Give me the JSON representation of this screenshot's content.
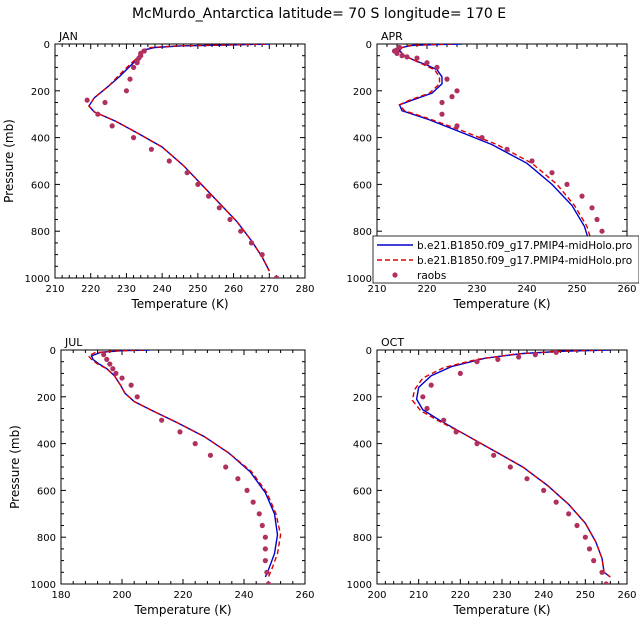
{
  "title": "McMurdo_Antarctica  latitude= 70 S longitude= 170 E",
  "legend": [
    {
      "label": "b.e21.B1850.f09_g17.PMIP4-midHolo.pro",
      "color": "#0000cc",
      "style": "solid"
    },
    {
      "label": "b.e21.B1850.f09_g17.PMIP4-midHolo.pro",
      "color": "#dd0000",
      "style": "dashed"
    },
    {
      "label": "raobs",
      "color": "#b03060",
      "style": "marker"
    }
  ],
  "colors": {
    "model_a": "#0000cc",
    "model_b": "#dd0000",
    "obs": "#b03060"
  },
  "chart_data": [
    {
      "type": "line",
      "panel": "JAN",
      "xlabel": "Temperature (K)",
      "ylabel": "Pressure (mb)",
      "xlim": [
        210,
        280
      ],
      "ylim": [
        1000,
        0
      ],
      "xticks": [
        210,
        220,
        230,
        240,
        250,
        260,
        270,
        280
      ],
      "yticks": [
        0,
        200,
        400,
        600,
        800,
        1000
      ],
      "series": [
        {
          "values": [
            [
              270,
              0
            ],
            [
              260,
              4
            ],
            [
              245,
              8
            ],
            [
              238,
              15
            ],
            [
              235,
              25
            ],
            [
              234,
              40
            ],
            [
              233.5,
              60
            ],
            [
              232,
              80
            ],
            [
              230,
              110
            ],
            [
              228,
              140
            ],
            [
              225,
              180
            ],
            [
              221,
              230
            ],
            [
              219.5,
              265
            ],
            [
              221,
              290
            ],
            [
              227,
              330
            ],
            [
              233,
              380
            ],
            [
              240,
              440
            ],
            [
              246,
              520
            ],
            [
              251,
              600
            ],
            [
              256,
              680
            ],
            [
              261,
              760
            ],
            [
              265,
              840
            ],
            [
              268,
              910
            ],
            [
              270,
              970
            ]
          ]
        },
        {
          "values": [
            [
              269,
              0
            ],
            [
              259,
              4
            ],
            [
              244,
              8
            ],
            [
              237,
              15
            ],
            [
              234.5,
              25
            ],
            [
              234,
              40
            ],
            [
              233,
              60
            ],
            [
              231.5,
              80
            ],
            [
              229.5,
              110
            ],
            [
              227.5,
              140
            ],
            [
              225,
              180
            ],
            [
              221,
              230
            ],
            [
              219.5,
              265
            ],
            [
              221,
              290
            ],
            [
              227,
              330
            ],
            [
              233,
              380
            ],
            [
              240,
              440
            ],
            [
              246,
              520
            ],
            [
              251,
              600
            ],
            [
              256,
              680
            ],
            [
              261,
              760
            ],
            [
              265,
              840
            ],
            [
              268,
              910
            ],
            [
              270,
              970
            ]
          ]
        }
      ],
      "obs": [
        [
          235,
          30
        ],
        [
          234,
          40
        ],
        [
          234,
          50
        ],
        [
          233.5,
          60
        ],
        [
          233,
          70
        ],
        [
          233,
          80
        ],
        [
          232,
          100
        ],
        [
          231,
          150
        ],
        [
          230,
          200
        ],
        [
          224,
          250
        ],
        [
          219,
          240
        ],
        [
          222,
          300
        ],
        [
          226,
          350
        ],
        [
          232,
          400
        ],
        [
          237,
          450
        ],
        [
          242,
          500
        ],
        [
          247,
          550
        ],
        [
          250,
          600
        ],
        [
          253,
          650
        ],
        [
          256,
          700
        ],
        [
          259,
          750
        ],
        [
          262,
          800
        ],
        [
          265,
          850
        ],
        [
          268,
          900
        ],
        [
          272,
          1000
        ]
      ]
    },
    {
      "type": "line",
      "panel": "APR",
      "xlabel": "Temperature (K)",
      "ylabel": "",
      "xlim": [
        210,
        260
      ],
      "ylim": [
        1000,
        0
      ],
      "xticks": [
        210,
        220,
        230,
        240,
        250,
        260
      ],
      "yticks": [
        0,
        200,
        400,
        600,
        800,
        1000
      ],
      "series": [
        {
          "values": [
            [
              227,
              0
            ],
            [
              222,
              2
            ],
            [
              217,
              6
            ],
            [
              215,
              15
            ],
            [
              214.5,
              30
            ],
            [
              215.5,
              50
            ],
            [
              217.5,
              70
            ],
            [
              220,
              90
            ],
            [
              222,
              110
            ],
            [
              223,
              140
            ],
            [
              223,
              170
            ],
            [
              221,
              210
            ],
            [
              217,
              240
            ],
            [
              214.5,
              260
            ],
            [
              215,
              285
            ],
            [
              220,
              320
            ],
            [
              226,
              370
            ],
            [
              233,
              430
            ],
            [
              240,
              510
            ],
            [
              245,
              600
            ],
            [
              249,
              690
            ],
            [
              251.5,
              780
            ],
            [
              252.5,
              850
            ],
            [
              251,
              920
            ],
            [
              250.5,
              970
            ]
          ]
        },
        {
          "values": [
            [
              225,
              0
            ],
            [
              220,
              3
            ],
            [
              216,
              8
            ],
            [
              214.5,
              20
            ],
            [
              215,
              40
            ],
            [
              216.5,
              60
            ],
            [
              219,
              85
            ],
            [
              221.5,
              110
            ],
            [
              222.5,
              140
            ],
            [
              222.5,
              170
            ],
            [
              220.5,
              210
            ],
            [
              216.5,
              240
            ],
            [
              214.5,
              260
            ],
            [
              215.5,
              285
            ],
            [
              220.5,
              320
            ],
            [
              227,
              370
            ],
            [
              234,
              430
            ],
            [
              241,
              510
            ],
            [
              246,
              600
            ],
            [
              249.5,
              690
            ],
            [
              252,
              780
            ],
            [
              253,
              850
            ],
            [
              251.5,
              920
            ],
            [
              251,
              970
            ]
          ]
        }
      ],
      "obs": [
        [
          214,
          25
        ],
        [
          214.5,
          15
        ],
        [
          213.5,
          30
        ],
        [
          214,
          40
        ],
        [
          215,
          50
        ],
        [
          216,
          55
        ],
        [
          218,
          60
        ],
        [
          220,
          80
        ],
        [
          222,
          100
        ],
        [
          224,
          150
        ],
        [
          226,
          200
        ],
        [
          225,
          225
        ],
        [
          223,
          250
        ],
        [
          223,
          300
        ],
        [
          226,
          350
        ],
        [
          231,
          400
        ],
        [
          236,
          450
        ],
        [
          241,
          500
        ],
        [
          245,
          550
        ],
        [
          248,
          600
        ],
        [
          251,
          650
        ],
        [
          253,
          700
        ],
        [
          254,
          750
        ],
        [
          255,
          800
        ],
        [
          256,
          900
        ],
        [
          256.5,
          950
        ],
        [
          256.5,
          1000
        ]
      ]
    },
    {
      "type": "line",
      "panel": "JUL",
      "xlabel": "Temperature (K)",
      "ylabel": "Pressure (mb)",
      "xlim": [
        180,
        260
      ],
      "ylim": [
        1000,
        0
      ],
      "xticks": [
        180,
        200,
        220,
        240,
        260
      ],
      "yticks": [
        0,
        200,
        400,
        600,
        800,
        1000
      ],
      "series": [
        {
          "values": [
            [
              209,
              0
            ],
            [
              200,
              3
            ],
            [
              193,
              10
            ],
            [
              190,
              25
            ],
            [
              190.5,
              40
            ],
            [
              192.5,
              60
            ],
            [
              195,
              80
            ],
            [
              197.5,
              110
            ],
            [
              199.5,
              150
            ],
            [
              201,
              185
            ],
            [
              204,
              220
            ],
            [
              210,
              260
            ],
            [
              218,
              310
            ],
            [
              227,
              370
            ],
            [
              235,
              440
            ],
            [
              242,
              520
            ],
            [
              247,
              610
            ],
            [
              250,
              700
            ],
            [
              251,
              790
            ],
            [
              250,
              870
            ],
            [
              248,
              940
            ],
            [
              247,
              970
            ]
          ]
        },
        {
          "values": [
            [
              207,
              0
            ],
            [
              198,
              4
            ],
            [
              191,
              12
            ],
            [
              189,
              25
            ],
            [
              190,
              40
            ],
            [
              192,
              60
            ],
            [
              195,
              80
            ],
            [
              197.5,
              110
            ],
            [
              199.5,
              150
            ],
            [
              201,
              185
            ],
            [
              204,
              220
            ],
            [
              210,
              260
            ],
            [
              218,
              310
            ],
            [
              227,
              370
            ],
            [
              235,
              440
            ],
            [
              242.5,
              520
            ],
            [
              247.5,
              610
            ],
            [
              250.5,
              700
            ],
            [
              252,
              790
            ],
            [
              251,
              870
            ],
            [
              249,
              940
            ],
            [
              248,
              970
            ]
          ]
        }
      ],
      "obs": [
        [
          194,
          20
        ],
        [
          195,
          40
        ],
        [
          196,
          60
        ],
        [
          197,
          80
        ],
        [
          198,
          100
        ],
        [
          200,
          120
        ],
        [
          203,
          150
        ],
        [
          205,
          200
        ],
        [
          213,
          300
        ],
        [
          219,
          350
        ],
        [
          224,
          400
        ],
        [
          229,
          450
        ],
        [
          234,
          500
        ],
        [
          238,
          550
        ],
        [
          241,
          600
        ],
        [
          243,
          650
        ],
        [
          245,
          700
        ],
        [
          246,
          750
        ],
        [
          247,
          800
        ],
        [
          247,
          850
        ],
        [
          247,
          900
        ],
        [
          247.5,
          950
        ],
        [
          248,
          1000
        ]
      ]
    },
    {
      "type": "line",
      "panel": "OCT",
      "xlabel": "Temperature (K)",
      "ylabel": "",
      "xlim": [
        200,
        260
      ],
      "ylim": [
        1000,
        0
      ],
      "xticks": [
        200,
        210,
        220,
        230,
        240,
        250,
        260
      ],
      "yticks": [
        0,
        200,
        400,
        600,
        800,
        1000
      ],
      "series": [
        {
          "values": [
            [
              256,
              0
            ],
            [
              245,
              5
            ],
            [
              235,
              15
            ],
            [
              226,
              35
            ],
            [
              218,
              70
            ],
            [
              213,
              110
            ],
            [
              210,
              160
            ],
            [
              209.5,
              210
            ],
            [
              211,
              255
            ],
            [
              215,
              300
            ],
            [
              221,
              360
            ],
            [
              228,
              430
            ],
            [
              235,
              500
            ],
            [
              241,
              580
            ],
            [
              246,
              660
            ],
            [
              250,
              740
            ],
            [
              252.5,
              820
            ],
            [
              254,
              890
            ],
            [
              254.5,
              950
            ],
            [
              256,
              970
            ]
          ]
        },
        {
          "values": [
            [
              254,
              0
            ],
            [
              243,
              6
            ],
            [
              233,
              18
            ],
            [
              224,
              40
            ],
            [
              216,
              75
            ],
            [
              211,
              120
            ],
            [
              209,
              170
            ],
            [
              208.5,
              215
            ],
            [
              210.5,
              260
            ],
            [
              215,
              305
            ],
            [
              221,
              360
            ],
            [
              228,
              430
            ],
            [
              235,
              500
            ],
            [
              241,
              580
            ],
            [
              246,
              660
            ],
            [
              250,
              740
            ],
            [
              252.5,
              820
            ],
            [
              254,
              890
            ],
            [
              254.5,
              950
            ],
            [
              256,
              970
            ]
          ]
        }
      ],
      "obs": [
        [
          243,
          10
        ],
        [
          238,
          20
        ],
        [
          234,
          30
        ],
        [
          229,
          40
        ],
        [
          224,
          50
        ],
        [
          220,
          100
        ],
        [
          213,
          150
        ],
        [
          211,
          200
        ],
        [
          212,
          250
        ],
        [
          216,
          300
        ],
        [
          219,
          350
        ],
        [
          224,
          400
        ],
        [
          228,
          450
        ],
        [
          232,
          500
        ],
        [
          236,
          550
        ],
        [
          240,
          600
        ],
        [
          243,
          650
        ],
        [
          246,
          700
        ],
        [
          248,
          750
        ],
        [
          250,
          800
        ],
        [
          251,
          850
        ],
        [
          252,
          900
        ],
        [
          254,
          950
        ],
        [
          255,
          1000
        ]
      ]
    }
  ]
}
